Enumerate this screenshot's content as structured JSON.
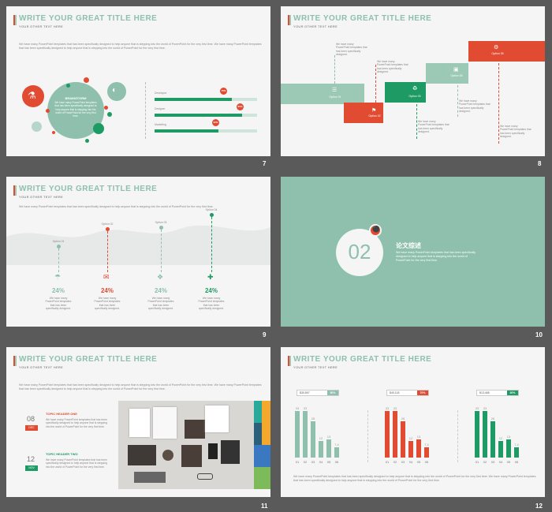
{
  "common": {
    "title": "WRITE YOUR GREAT TITLE HERE",
    "subtitle": "YOUR OTHER TEXT HERE",
    "body_long": "We have many PowerPoint templates that has been specifically designed to help anyone that is stepping into the world of PowerPoint for the very first time. We have many PowerPoint templates that has been specifically designed to help anyone that is stepping into the world of PowerPoint for the very first time.",
    "body_short": "We have many PowerPoint templates that has been specifically designed to help anyone that is stepping into the world of PowerPoint for the very first time."
  },
  "colors": {
    "teal": "#8ec0ad",
    "red": "#e04b32",
    "green": "#1e9b64",
    "bg": "#f5f5f5"
  },
  "slide7": {
    "number": "7",
    "circle_heading": "BRAINSTORM",
    "circle_text": "We have many PowerPoint templates that has been specifically designed to help anyone that is stepping into the world of PowerPoint for the very first time.",
    "bars": [
      {
        "label": "Developer",
        "value": 75,
        "text": "75%"
      },
      {
        "label": "Designer",
        "value": 85,
        "text": "85%"
      },
      {
        "label": "Marketing",
        "value": 62,
        "text": "62%"
      }
    ]
  },
  "slide8": {
    "number": "8",
    "options": [
      "Option 01",
      "Option 02",
      "Option 03",
      "Option 04",
      "Option 05"
    ],
    "desc": "We have many PowerPoint templates that has been specifically designed."
  },
  "slide9": {
    "number": "9",
    "options": [
      "Option 01",
      "Option 02",
      "Option 03",
      "Option 04"
    ],
    "pct": [
      "24%",
      "24%",
      "24%",
      "24%"
    ],
    "desc": "We have many PowerPoint templates that has been specifically designed."
  },
  "slide10": {
    "number": "10",
    "section": "02",
    "heading": "论文综述",
    "text": "We have many PowerPoint templates that has been specifically designed to help anyone that is stepping into the world of PowerPoint for the very first time."
  },
  "slide11": {
    "number": "11",
    "items": [
      {
        "day": "08",
        "month": "DEC",
        "heading": "TOPIC HEADER ONE",
        "text": "We have many PowerPoint templates that has been specifically designed to help anyone that is stepping into the world of PowerPoint for the very first time."
      },
      {
        "day": "12",
        "month": "NOV",
        "heading": "TOPIC HEADER TWO",
        "text": "We have many PowerPoint templates that has been specifically designed to help anyone that is stepping into the world of PowerPoint for the very first time."
      }
    ]
  },
  "slide12": {
    "number": "12",
    "charts": [
      {
        "amount": "$30,897",
        "pct": "50%",
        "color": "#8ec0ad"
      },
      {
        "amount": "$40,118",
        "pct": "70%",
        "color": "#e04b32"
      },
      {
        "amount": "$13,465",
        "pct": "20%",
        "color": "#1e9b64"
      }
    ]
  },
  "chart_data": {
    "type": "bar",
    "categories": [
      "01",
      "02",
      "03",
      "04",
      "05",
      "06"
    ],
    "series": [
      {
        "values": [
          33,
          33,
          26,
          12,
          13,
          7.4
        ]
      },
      {
        "values": [
          33,
          33,
          26,
          12,
          13,
          7.4
        ]
      },
      {
        "values": [
          33,
          33,
          26,
          12,
          13,
          7.4
        ]
      }
    ],
    "data_labels": [
      "33",
      "33",
      "26",
      "12",
      "13",
      "7.4"
    ],
    "ylim": [
      0,
      36
    ]
  }
}
